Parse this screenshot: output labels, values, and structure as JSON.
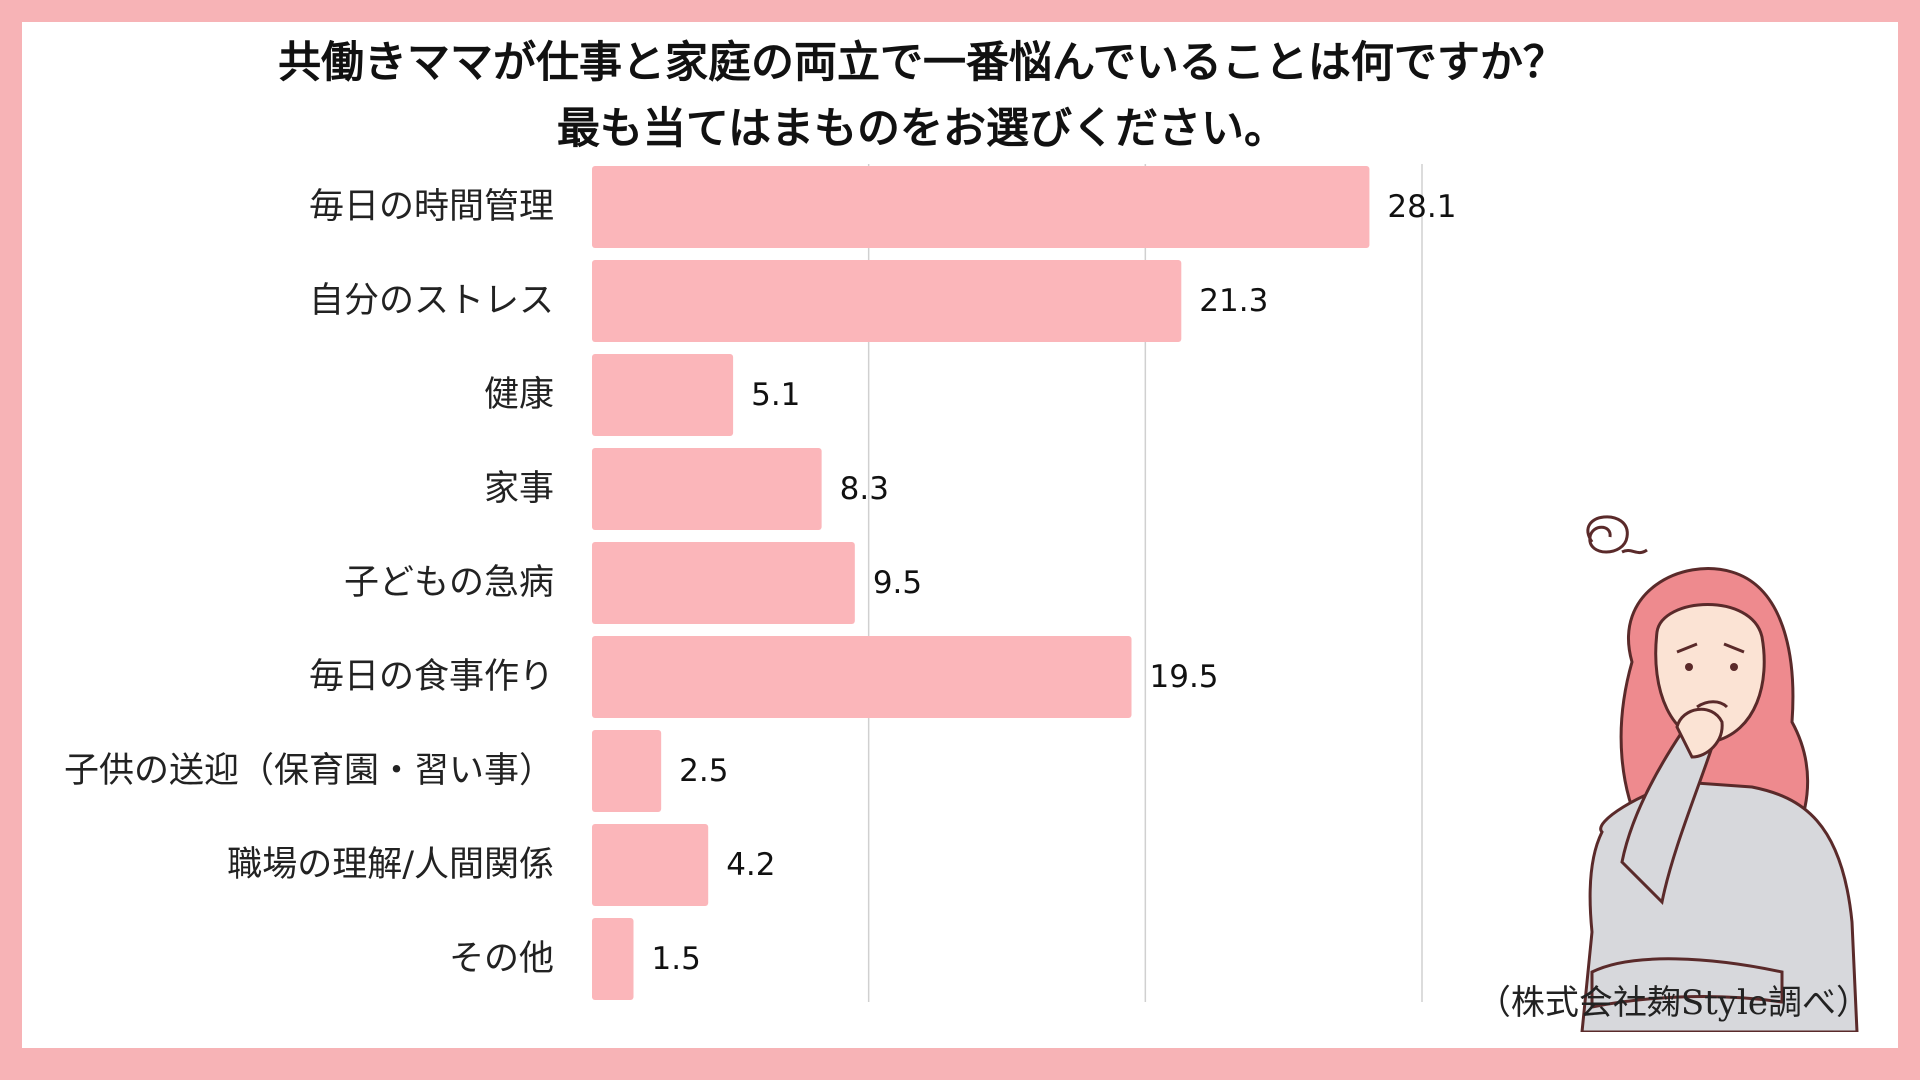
{
  "title": {
    "line1": "共働きママが仕事と家庭の両立で一番悩んでいることは何ですか？",
    "line2": "最も当てはまものをお選びください。"
  },
  "source": "（株式会社麹Style調べ）",
  "colors": {
    "background": "#f7b3b6",
    "bar": "#fbb6ba",
    "gridline": "#d0d0d0"
  },
  "illustration": "worried-woman-icon",
  "chart_data": {
    "type": "bar",
    "orientation": "horizontal",
    "categories": [
      "毎日の時間管理",
      "自分のストレス",
      "健康",
      "家事",
      "子どもの急病",
      "毎日の食事作り",
      "子供の送迎（保育園・習い事）",
      "職場の理解/人間関係",
      "その他"
    ],
    "values": [
      28.1,
      21.3,
      5.1,
      8.3,
      9.5,
      19.5,
      2.5,
      4.2,
      1.5
    ],
    "xlim": [
      0,
      30
    ],
    "grid": true
  }
}
